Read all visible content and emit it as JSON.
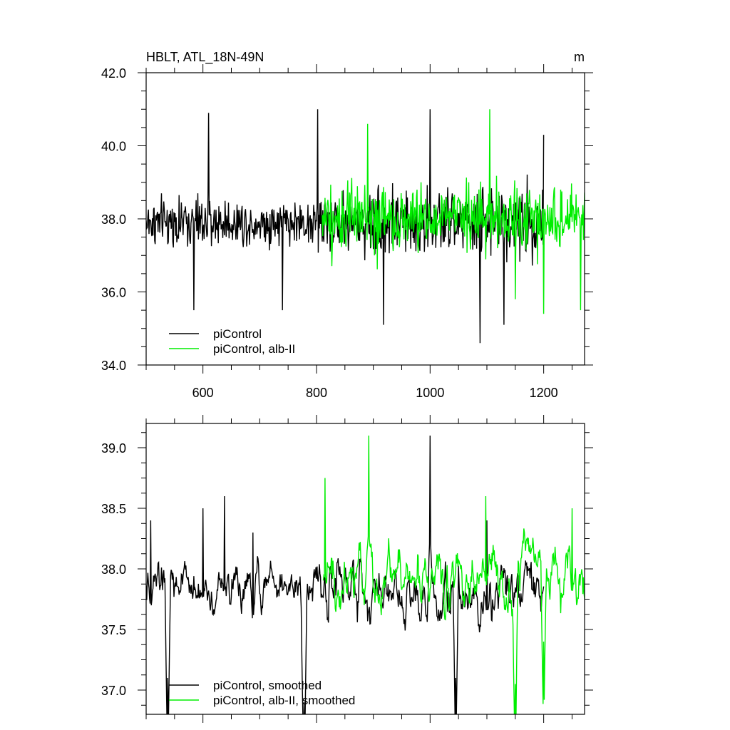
{
  "figure": {
    "title_left": "HBLT, ATL_18N-49N",
    "title_right": "m"
  },
  "chart_data": [
    {
      "type": "line",
      "xlim": [
        500,
        1272
      ],
      "ylim": [
        34.0,
        42.0
      ],
      "x_ticks": [
        600,
        800,
        1000,
        1200
      ],
      "x_tick_labels": [
        "600",
        "800",
        "1000",
        "1200"
      ],
      "y_ticks": [
        34.0,
        36.0,
        38.0,
        40.0,
        42.0
      ],
      "y_tick_labels": [
        "34.0",
        "36.0",
        "38.0",
        "40.0",
        "42.0"
      ],
      "grid": false,
      "legend_position": "bottom-left",
      "series": [
        {
          "name": "piControl",
          "color": "#000000",
          "x_start": 500,
          "x_end": 1200,
          "mean": 37.9,
          "segments": [
            {
              "x_from": 500,
              "x_to": 800,
              "amp": 0.75
            },
            {
              "x_from": 800,
              "x_to": 1200,
              "amp": 1.05
            }
          ],
          "peaks": [
            [
              584,
              35.5
            ],
            [
              610,
              40.9
            ],
            [
              740,
              35.5
            ],
            [
              802,
              41.0
            ],
            [
              918,
              35.1
            ],
            [
              1000,
              41.0
            ],
            [
              1088,
              34.6
            ],
            [
              1130,
              35.1
            ],
            [
              1200,
              40.3
            ]
          ]
        },
        {
          "name": "piControl, alb-II",
          "color": "#00ee00",
          "x_start": 810,
          "x_end": 1272,
          "mean": 38.0,
          "segments": [
            {
              "x_from": 810,
              "x_to": 1272,
              "amp": 1.05
            }
          ],
          "peaks": [
            [
              890,
              40.6
            ],
            [
              1105,
              41.0
            ],
            [
              1150,
              35.8
            ],
            [
              1200,
              35.4
            ],
            [
              1265,
              35.5
            ]
          ]
        }
      ]
    },
    {
      "type": "line",
      "xlim": [
        500,
        1272
      ],
      "ylim": [
        36.8,
        39.2
      ],
      "x_ticks": [
        600,
        800,
        1000,
        1200
      ],
      "x_tick_labels": [
        "600",
        "800",
        "1000",
        "1200"
      ],
      "y_ticks": [
        37.0,
        37.5,
        38.0,
        38.5,
        39.0
      ],
      "y_tick_labels": [
        "37.0",
        "37.5",
        "38.0",
        "38.5",
        "39.0"
      ],
      "grid": false,
      "legend_position": "bottom-left",
      "series": [
        {
          "name": "piControl, smoothed",
          "color": "#000000",
          "x_start": 500,
          "x_end": 1200,
          "mean": 37.85,
          "segments": [
            {
              "x_from": 500,
              "x_to": 800,
              "amp": 0.35
            },
            {
              "x_from": 800,
              "x_to": 1200,
              "amp": 0.45
            }
          ],
          "peaks": [
            [
              508,
              38.4
            ],
            [
              538,
              37.1
            ],
            [
              600,
              38.5
            ],
            [
              638,
              38.6
            ],
            [
              688,
              38.3
            ],
            [
              778,
              36.9
            ],
            [
              1000,
              39.1
            ],
            [
              1045,
              37.1
            ],
            [
              1100,
              38.4
            ]
          ]
        },
        {
          "name": "piControl, alb-II, smoothed",
          "color": "#00ee00",
          "x_start": 812,
          "x_end": 1272,
          "mean": 37.95,
          "segments": [
            {
              "x_from": 812,
              "x_to": 1272,
              "amp": 0.45
            }
          ],
          "peaks": [
            [
              815,
              38.75
            ],
            [
              892,
              39.1
            ],
            [
              1098,
              38.6
            ],
            [
              1150,
              37.05
            ],
            [
              1200,
              37.4
            ],
            [
              1250,
              38.5
            ]
          ]
        }
      ]
    }
  ]
}
